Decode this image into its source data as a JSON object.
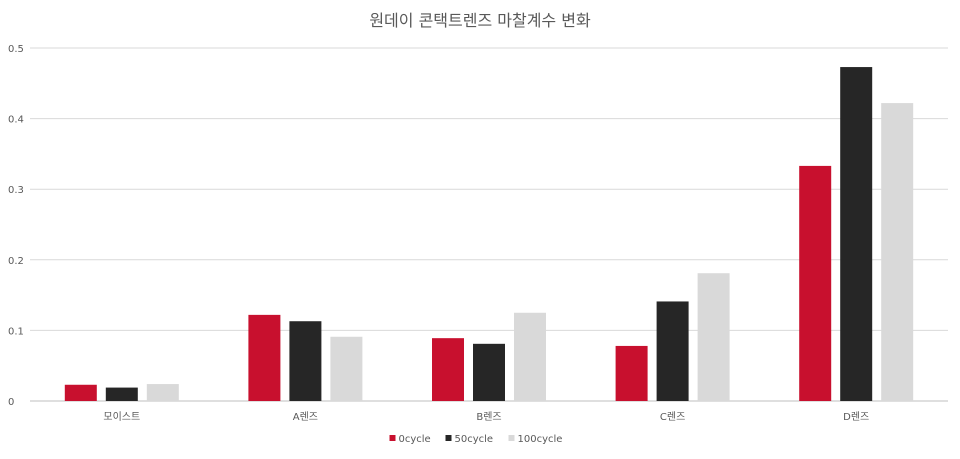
{
  "chart_data": {
    "type": "bar",
    "title": "원데이 콘택트렌즈 마찰계수 변화",
    "xlabel": "",
    "ylabel": "",
    "categories": [
      "모이스트",
      "A렌즈",
      "B렌즈",
      "C렌즈",
      "D렌즈"
    ],
    "series": [
      {
        "name": "0cycle",
        "color": "#c8102e",
        "values": [
          0.023,
          0.122,
          0.089,
          0.078,
          0.333
        ]
      },
      {
        "name": "50cycle",
        "color": "#262626",
        "values": [
          0.019,
          0.113,
          0.081,
          0.141,
          0.473
        ]
      },
      {
        "name": "100cycle",
        "color": "#d9d9d9",
        "values": [
          0.024,
          0.091,
          0.125,
          0.181,
          0.422
        ]
      }
    ],
    "ylim": [
      0,
      0.5
    ],
    "yticks": [
      "0",
      "0.1",
      "0.2",
      "0.3",
      "0.4",
      "0.5"
    ],
    "grid": true,
    "legend_position": "bottom"
  }
}
